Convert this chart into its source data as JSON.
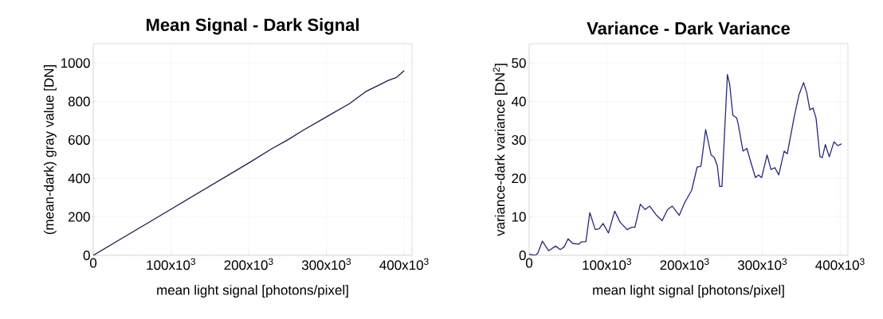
{
  "chart_data": [
    {
      "type": "line",
      "title": "Mean Signal - Dark Signal",
      "xlabel": "mean light signal [photons/pixel]",
      "ylabel": "(mean-dark) gray value [DN]",
      "xlim": [
        0,
        410000
      ],
      "ylim": [
        0,
        1100
      ],
      "xticks": [
        0,
        {
          "value": 100000,
          "label": "100x10$^{3}$"
        },
        {
          "value": 200000,
          "label": "200x10$^{3}$"
        },
        {
          "value": 300000,
          "label": "300x10$^{3}$"
        },
        {
          "value": 400000,
          "label": "400x10$^{3}$"
        }
      ],
      "yticks": [
        0,
        200,
        400,
        600,
        800,
        1000
      ],
      "grid": true,
      "line_style": "solid",
      "series": [
        {
          "color": "#1c1c44",
          "x": [
            0,
            50000,
            100000,
            150000,
            200000,
            230000,
            250000,
            270000,
            300000,
            330000,
            350000,
            380000,
            390000,
            400000
          ],
          "values": [
            0,
            120,
            240,
            360,
            480,
            555,
            600,
            650,
            720,
            790,
            850,
            910,
            925,
            960
          ]
        }
      ]
    },
    {
      "type": "line",
      "title": "Variance - Dark Variance",
      "xlabel": "mean light signal [photons/pixel]",
      "ylabel": "variance-dark variance [DN$^{2}$]",
      "xlim": [
        0,
        410000
      ],
      "ylim": [
        0,
        55
      ],
      "xticks": [
        0,
        {
          "value": 100000,
          "label": "100x10$^{3}$"
        },
        {
          "value": 200000,
          "label": "200x10$^{3}$"
        },
        {
          "value": 300000,
          "label": "300x10$^{3}$"
        },
        {
          "value": 400000,
          "label": "400x10$^{3}$"
        }
      ],
      "yticks": [
        0,
        10,
        20,
        30,
        40,
        50
      ],
      "grid": true,
      "line_style": "solid",
      "series": [
        {
          "color": "#28287a",
          "x": [
            0,
            8000,
            11000,
            17000,
            25000,
            34000,
            40000,
            45000,
            50000,
            56000,
            64000,
            67000,
            73000,
            78000,
            85000,
            90000,
            95000,
            102000,
            110000,
            117000,
            126000,
            132000,
            136000,
            143000,
            149000,
            155000,
            163000,
            171000,
            178000,
            184000,
            193000,
            200000,
            209000,
            216000,
            221000,
            227000,
            234000,
            238000,
            242000,
            245000,
            248000,
            251000,
            255000,
            258000,
            262000,
            267000,
            269000,
            275000,
            280000,
            285000,
            291000,
            295000,
            299000,
            306000,
            311000,
            316000,
            321000,
            328000,
            332000,
            341000,
            347000,
            353000,
            357000,
            361000,
            365000,
            369000,
            374000,
            377000,
            381000,
            386000,
            392000,
            397000,
            402000
          ],
          "values": [
            0.3,
            0,
            0.5,
            3.7,
            1.2,
            2.4,
            1.5,
            2.2,
            4.3,
            3.1,
            2.9,
            3.5,
            3.6,
            11.1,
            6.7,
            6.9,
            8.3,
            5.8,
            11.5,
            8.6,
            6.7,
            7.3,
            7.3,
            13.3,
            11.9,
            12.8,
            10.6,
            9.0,
            11.9,
            12.8,
            10.4,
            13.7,
            16.9,
            22.9,
            23.2,
            32.7,
            26.1,
            25.5,
            23.3,
            17.9,
            17.9,
            30.6,
            47,
            44.3,
            36.4,
            35.7,
            34,
            27.1,
            27.8,
            24.3,
            20.2,
            20.9,
            20.2,
            26.1,
            22.3,
            22.8,
            20.9,
            27.1,
            26.4,
            36.1,
            41.7,
            44.9,
            42.3,
            37.8,
            38.3,
            35.7,
            25.7,
            25.4,
            28.8,
            25.6,
            29.5,
            28.5,
            29
          ]
        }
      ]
    }
  ]
}
